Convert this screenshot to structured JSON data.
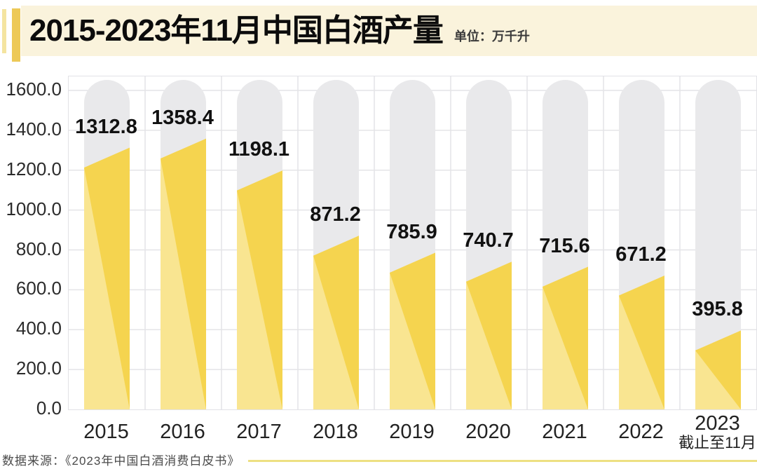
{
  "header": {
    "title": "2015-2023年11月中国白酒产量",
    "unit_label": "单位：万千升"
  },
  "chart_data": {
    "type": "bar",
    "title": "2015-2023年11月中国白酒产量",
    "unit": "万千升",
    "categories": [
      "2015",
      "2016",
      "2017",
      "2018",
      "2019",
      "2020",
      "2021",
      "2022",
      "2023"
    ],
    "values": [
      1312.8,
      1358.4,
      1198.1,
      871.2,
      785.9,
      740.7,
      715.6,
      671.2,
      395.8
    ],
    "value_labels": [
      "1312.8",
      "1358.4",
      "1198.1",
      "871.2",
      "785.9",
      "740.7",
      "715.6",
      "671.2",
      "395.8"
    ],
    "last_category_note": "截止至11月",
    "xlabel": "",
    "ylabel": "",
    "ylim": [
      0,
      1600
    ],
    "ytick_step": 200,
    "yticks": [
      "1600.0",
      "1400.0",
      "1200.0",
      "1000.0",
      "800.0",
      "600.0",
      "400.0",
      "200.0",
      "0.0"
    ],
    "grid": true,
    "legend": "none",
    "bar_style": "rounded gray pill background with diagonal-top two-tone yellow fill"
  },
  "colors": {
    "accent_gold": "#EDC957",
    "accent_pale": "#F4E4A0",
    "header_bg": "#FAF3DC",
    "bar_dark": "#F5D44F",
    "bar_light": "#F9E591",
    "pill": "#E9E9EB",
    "grid": "#E4E4E7",
    "rule": "#EDE082"
  },
  "footer": {
    "source": "数据来源：《2023年中国白酒消费白皮书》"
  }
}
